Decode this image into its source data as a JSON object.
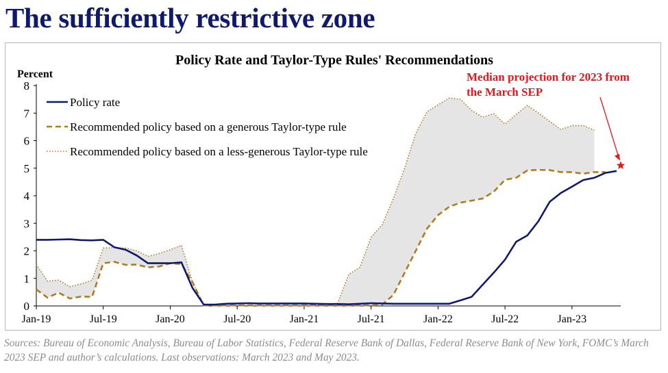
{
  "page": {
    "title": "The sufficiently restrictive zone",
    "source_note": "Sources: Bureau of Economic Analysis, Bureau of Labor Statistics, Federal Reserve Bank of Dallas, Federal Reserve Bank of New York, FOMC’s March 2023 SEP and author’s calculations. Last observations: March 2023 and May 2023."
  },
  "colors": {
    "title": "#0f1a6e",
    "policy_rate": "#0f1a6e",
    "generous_rule": "#b07a1e",
    "less_generous_rule": "#b07a1e",
    "band_fill": "#e5e5e5",
    "annotation": "#e8161b"
  },
  "chart_data": {
    "type": "line",
    "title": "Policy Rate and Taylor-Type Rules' Recommendations",
    "ylabel": "Percent",
    "ylim": [
      0,
      8
    ],
    "yticks": [
      "0",
      "1",
      "2",
      "3",
      "4",
      "5",
      "6",
      "7",
      "8"
    ],
    "x_tick_labels": [
      "Jan-19",
      "Jul-19",
      "Jan-20",
      "Jul-20",
      "Jan-21",
      "Jul-21",
      "Jan-22",
      "Jul-22",
      "Jan-23"
    ],
    "x": [
      "Jan-19",
      "Feb-19",
      "Mar-19",
      "Apr-19",
      "May-19",
      "Jun-19",
      "Jul-19",
      "Aug-19",
      "Sep-19",
      "Oct-19",
      "Nov-19",
      "Dec-19",
      "Jan-20",
      "Feb-20",
      "Mar-20",
      "Apr-20",
      "May-20",
      "Jun-20",
      "Jul-20",
      "Aug-20",
      "Sep-20",
      "Oct-20",
      "Nov-20",
      "Dec-20",
      "Jan-21",
      "Feb-21",
      "Mar-21",
      "Apr-21",
      "May-21",
      "Jun-21",
      "Jul-21",
      "Aug-21",
      "Sep-21",
      "Oct-21",
      "Nov-21",
      "Dec-21",
      "Jan-22",
      "Feb-22",
      "Mar-22",
      "Apr-22",
      "May-22",
      "Jun-22",
      "Jul-22",
      "Aug-22",
      "Sep-22",
      "Oct-22",
      "Nov-22",
      "Dec-22",
      "Jan-23",
      "Feb-23",
      "Mar-23",
      "Apr-23",
      "May-23"
    ],
    "legend_position": "top-left",
    "grid": false,
    "series": [
      {
        "name": "Policy rate",
        "style": "solid",
        "values": [
          2.4,
          2.4,
          2.41,
          2.42,
          2.39,
          2.38,
          2.4,
          2.13,
          2.04,
          1.83,
          1.55,
          1.55,
          1.55,
          1.58,
          0.65,
          0.05,
          0.05,
          0.08,
          0.09,
          0.1,
          0.09,
          0.09,
          0.09,
          0.09,
          0.09,
          0.08,
          0.07,
          0.07,
          0.06,
          0.08,
          0.1,
          0.09,
          0.08,
          0.08,
          0.08,
          0.08,
          0.08,
          0.08,
          0.2,
          0.33,
          0.77,
          1.21,
          1.68,
          2.33,
          2.56,
          3.08,
          3.78,
          4.1,
          4.33,
          4.57,
          4.65,
          4.83,
          4.9
        ]
      },
      {
        "name": "Recommended policy based on a generous Taylor-type rule",
        "style": "dashed",
        "values": [
          0.6,
          0.3,
          0.48,
          0.27,
          0.34,
          0.33,
          1.55,
          1.6,
          1.49,
          1.5,
          1.4,
          1.43,
          1.55,
          1.52,
          0.86,
          0.02,
          0.02,
          0.02,
          0.02,
          0.02,
          0.02,
          0.02,
          0.02,
          0.02,
          0.02,
          0.02,
          0.02,
          0.02,
          0.02,
          0.02,
          0.02,
          0.05,
          0.4,
          1.2,
          2.0,
          2.8,
          3.3,
          3.6,
          3.75,
          3.82,
          3.9,
          4.15,
          4.58,
          4.65,
          4.92,
          4.94,
          4.93,
          4.86,
          4.86,
          4.8,
          4.86,
          4.86,
          null
        ]
      },
      {
        "name": "Recommended policy based on a less-generous Taylor-type rule",
        "style": "dotted",
        "values": [
          1.5,
          0.9,
          0.94,
          0.7,
          0.8,
          0.93,
          2.1,
          2.12,
          2.1,
          2.0,
          1.8,
          1.9,
          2.04,
          2.2,
          0.86,
          0.02,
          0.02,
          0.02,
          0.02,
          0.02,
          0.02,
          0.02,
          0.02,
          0.02,
          0.02,
          0.02,
          0.05,
          0.1,
          1.15,
          1.4,
          2.5,
          2.95,
          3.9,
          5.0,
          6.25,
          7.05,
          7.3,
          7.55,
          7.5,
          7.1,
          6.85,
          6.98,
          6.6,
          6.95,
          7.28,
          7.0,
          6.7,
          6.4,
          6.55,
          6.55,
          6.38,
          null,
          null
        ]
      }
    ],
    "annotation": {
      "text_lines": [
        "Median projection for 2023 from",
        "the March SEP"
      ],
      "marker": "star",
      "x": "May-23",
      "y": 5.1
    }
  }
}
